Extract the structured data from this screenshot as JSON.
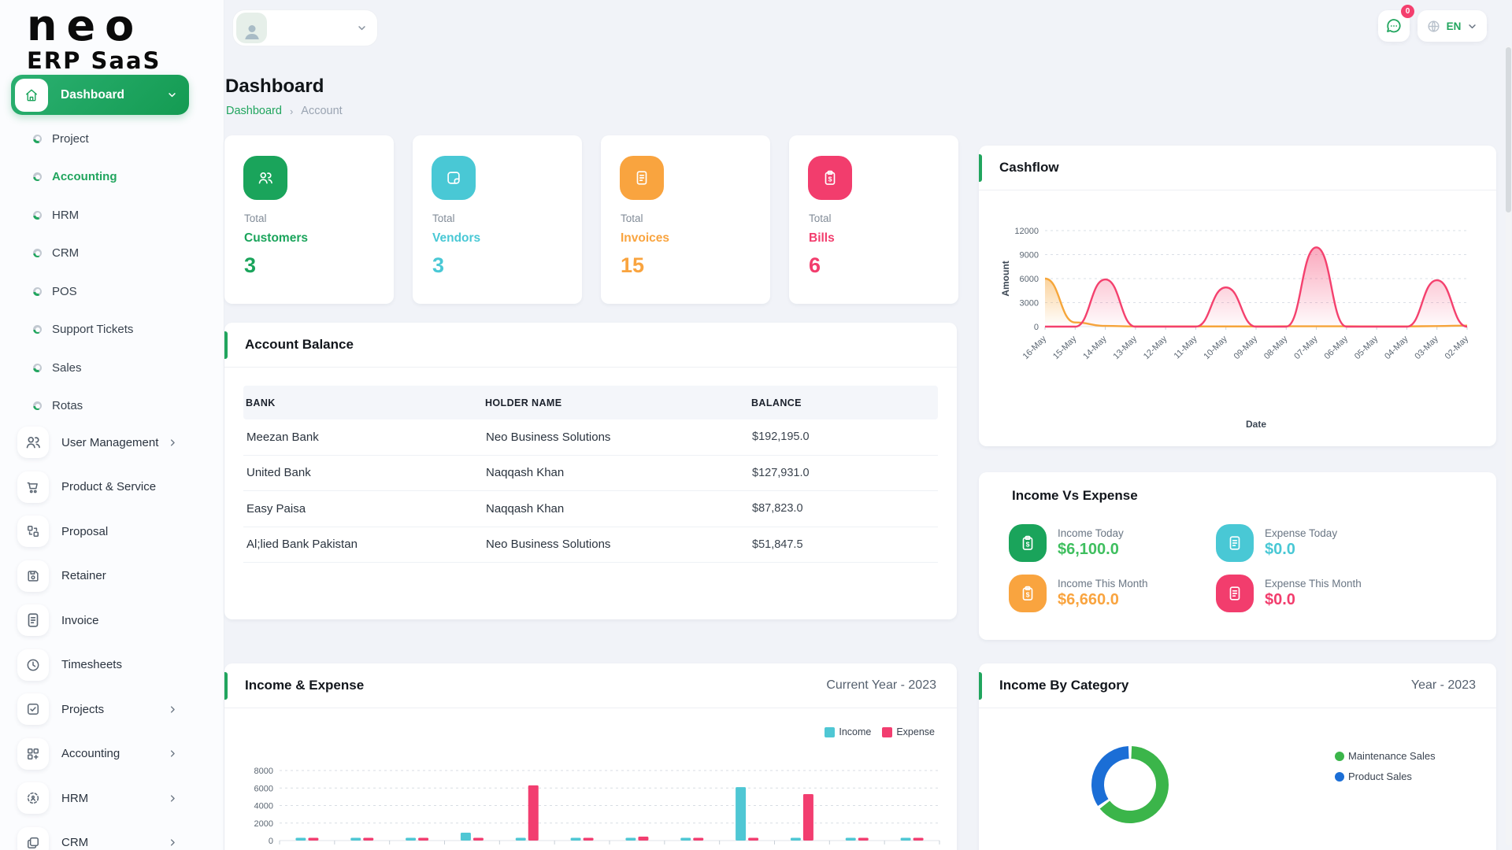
{
  "app": {
    "logo_top": "neo",
    "logo_bottom": "ERP SaaS"
  },
  "topbar": {
    "chat_badge": "0",
    "language": "EN"
  },
  "sidebar": {
    "dashboard_label": "Dashboard",
    "dashboard_children": [
      {
        "label": "Project",
        "active": false
      },
      {
        "label": "Accounting",
        "active": true
      },
      {
        "label": "HRM",
        "active": false
      },
      {
        "label": "CRM",
        "active": false
      },
      {
        "label": "POS",
        "active": false
      },
      {
        "label": "Support Tickets",
        "active": false
      },
      {
        "label": "Sales",
        "active": false
      },
      {
        "label": "Rotas",
        "active": false
      }
    ],
    "menu": [
      {
        "label": "User Management",
        "icon": "users",
        "chevron": true
      },
      {
        "label": "Product & Service",
        "icon": "cart",
        "chevron": false
      },
      {
        "label": "Proposal",
        "icon": "proposal",
        "chevron": false
      },
      {
        "label": "Retainer",
        "icon": "save",
        "chevron": false
      },
      {
        "label": "Invoice",
        "icon": "invoice",
        "chevron": false
      },
      {
        "label": "Timesheets",
        "icon": "clock",
        "chevron": false
      },
      {
        "label": "Projects",
        "icon": "check-square",
        "chevron": true
      },
      {
        "label": "Accounting",
        "icon": "grid-plus",
        "chevron": true
      },
      {
        "label": "HRM",
        "icon": "hrm",
        "chevron": true
      },
      {
        "label": "CRM",
        "icon": "crm",
        "chevron": true
      }
    ]
  },
  "page": {
    "title": "Dashboard",
    "breadcrumb": [
      {
        "label": "Dashboard",
        "link": true
      },
      {
        "label": "Account",
        "link": false
      }
    ]
  },
  "stats": [
    {
      "prefix": "Total",
      "label": "Customers",
      "value": "3",
      "color": "#1aa45b",
      "icon": "users"
    },
    {
      "prefix": "Total",
      "label": "Vendors",
      "value": "3",
      "color": "#49c8d5",
      "icon": "note"
    },
    {
      "prefix": "Total",
      "label": "Invoices",
      "value": "15",
      "color": "#f9a43f",
      "icon": "invoice"
    },
    {
      "prefix": "Total",
      "label": "Bills",
      "value": "6",
      "color": "#f23d6d",
      "icon": "clipboard-dollar"
    }
  ],
  "account_balance": {
    "title": "Account Balance",
    "columns": [
      "BANK",
      "HOLDER NAME",
      "BALANCE"
    ],
    "rows": [
      {
        "bank": "Meezan Bank",
        "holder": "Neo Business Solutions",
        "balance": "$192,195.0"
      },
      {
        "bank": "United Bank",
        "holder": "Naqqash Khan",
        "balance": "$127,931.0"
      },
      {
        "bank": "Easy Paisa",
        "holder": "Naqqash Khan",
        "balance": "$87,823.0"
      },
      {
        "bank": "Al;lied Bank Pakistan",
        "holder": "Neo Business Solutions",
        "balance": "$51,847.5"
      }
    ]
  },
  "income_vs_expense": {
    "title": "Income Vs Expense",
    "items": [
      {
        "label": "Income Today",
        "value": "$6,100.0",
        "color": "#3fbf5f",
        "icon_bg": "#1aa45b",
        "icon": "clipboard-dollar"
      },
      {
        "label": "Expense Today",
        "value": "$0.0",
        "color": "#49c8d5",
        "icon_bg": "#49c8d5",
        "icon": "invoice"
      },
      {
        "label": "Income This Month",
        "value": "$6,660.0",
        "color": "#f9a43f",
        "icon_bg": "#f9a43f",
        "icon": "clipboard-dollar"
      },
      {
        "label": "Expense This Month",
        "value": "$0.0",
        "color": "#f23d6d",
        "icon_bg": "#f23d6d",
        "icon": "invoice"
      }
    ]
  },
  "chart_data": [
    {
      "id": "cashflow",
      "type": "area",
      "title": "Cashflow",
      "xlabel": "Date",
      "ylabel": "Amount",
      "ylim": [
        0,
        12000
      ],
      "yticks": [
        0,
        3000,
        6000,
        9000,
        12000
      ],
      "grid": true,
      "x": [
        "16-May",
        "15-May",
        "14-May",
        "13-May",
        "12-May",
        "11-May",
        "10-May",
        "09-May",
        "08-May",
        "07-May",
        "06-May",
        "05-May",
        "04-May",
        "03-May",
        "02-May"
      ],
      "series": [
        {
          "name": "Income",
          "color": "#f6a63a",
          "values": [
            6000,
            520,
            90,
            30,
            25,
            25,
            25,
            25,
            45,
            45,
            40,
            30,
            30,
            70,
            130
          ]
        },
        {
          "name": "Expense",
          "color": "#f4416e",
          "values": [
            0,
            0,
            5900,
            0,
            0,
            0,
            4900,
            0,
            0,
            9900,
            0,
            0,
            0,
            5800,
            0
          ]
        }
      ]
    },
    {
      "id": "income_expense",
      "type": "bar",
      "title": "Income & Expense",
      "subtitle": "Current Year - 2023",
      "ylim": [
        0,
        8000
      ],
      "yticks": [
        0,
        2000,
        4000,
        6000,
        8000
      ],
      "grid": true,
      "legend_position": "top-right",
      "categories": [
        "",
        "",
        "",
        "",
        "",
        "",
        "",
        "",
        "",
        "",
        "",
        ""
      ],
      "series": [
        {
          "name": "Income",
          "color": "#4fc7d4",
          "values": [
            250,
            160,
            140,
            900,
            120,
            160,
            220,
            140,
            6100,
            140,
            140,
            140
          ]
        },
        {
          "name": "Expense",
          "color": "#f23e70",
          "values": [
            160,
            140,
            130,
            160,
            6300,
            140,
            450,
            140,
            140,
            5300,
            140,
            140
          ]
        }
      ]
    },
    {
      "id": "income_by_category",
      "type": "pie",
      "donut": true,
      "title": "Income By Category",
      "subtitle": "Year - 2023",
      "labels": [
        "Maintenance Sales",
        "Product Sales"
      ],
      "values": [
        65,
        35
      ],
      "unit": "percent (estimated from arc length)",
      "colors": [
        "#3bb54a",
        "#1b6ed6"
      ],
      "legend_position": "right"
    }
  ]
}
